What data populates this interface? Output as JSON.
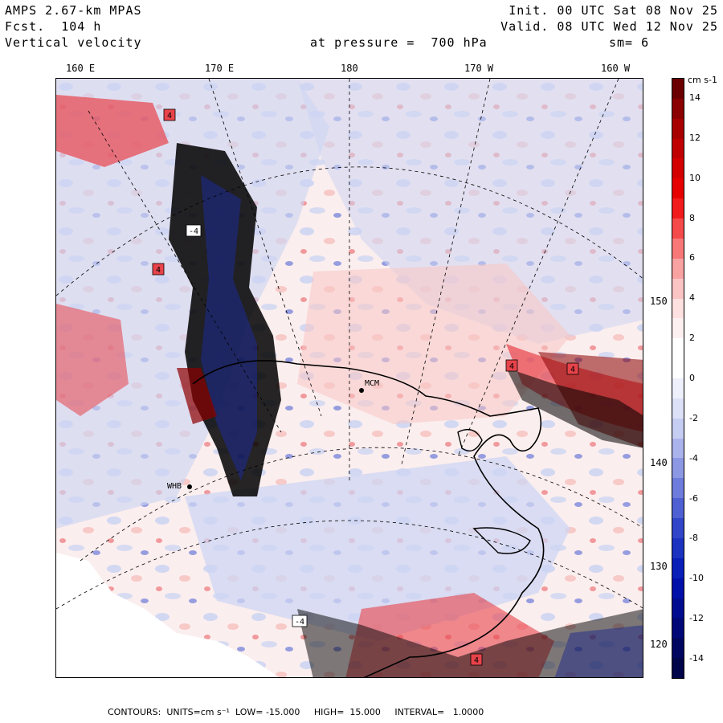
{
  "header": {
    "model": "AMPS 2.67-km MPAS",
    "forecast": "Fcst.  104 h",
    "field": "Vertical velocity",
    "init": "Init. 00 UTC Sat 08 Nov 25",
    "valid": "Valid. 08 UTC Wed 12 Nov 25",
    "pressure": "at pressure =  700 hPa",
    "smoothing": "sm= 6"
  },
  "map": {
    "longitude_labels": [
      "160 E",
      "170 E",
      "180",
      "170 W",
      "160 W"
    ],
    "latitude_labels": [
      "150 W",
      "140 W",
      "130 W",
      "120 W"
    ],
    "stations": [
      "MCM",
      "WHB"
    ],
    "contour_value_labels": [
      "4",
      "-4",
      "4",
      "4",
      "4",
      "-4",
      "4"
    ],
    "colors": {
      "strong_positive": "#8b0000",
      "positive": "#e8434a",
      "weak_positive": "#f7c6c4",
      "neutral": "#fbeeee",
      "weak_negative": "#ced6f3",
      "negative": "#5468d6",
      "strong_negative": "#1d2a8c",
      "ice_white": "#ffffff",
      "terrain_black": "#000000"
    }
  },
  "colorbar": {
    "units": "cm s-1",
    "labels": [
      "14",
      "12",
      "10",
      "8",
      "6",
      "4",
      "2",
      "0",
      "-2",
      "-4",
      "-6",
      "-8",
      "-10",
      "-12",
      "-14"
    ],
    "range": [
      -15,
      15
    ],
    "colors_top_to_bottom": [
      "#6b0000",
      "#8b0000",
      "#a80000",
      "#c00000",
      "#d40000",
      "#e60000",
      "#f21b1b",
      "#f54a4a",
      "#f87878",
      "#f9a2a2",
      "#fbc4c4",
      "#fde0e0",
      "#fdf0f0",
      "#ffffff",
      "#ffffff",
      "#eef0fc",
      "#dde1f7",
      "#c6cdf2",
      "#aab3ec",
      "#8d98e4",
      "#6e7cdb",
      "#4f60d2",
      "#3145c8",
      "#1c33c0",
      "#0a1eb8",
      "#0010a8",
      "#000c90",
      "#000878",
      "#000660",
      "#00054a"
    ]
  },
  "footer": {
    "text": "CONTOURS:  UNITS=cm s⁻¹  LOW= -15.000     HIGH=  15.000     INTERVAL=   1.0000"
  }
}
